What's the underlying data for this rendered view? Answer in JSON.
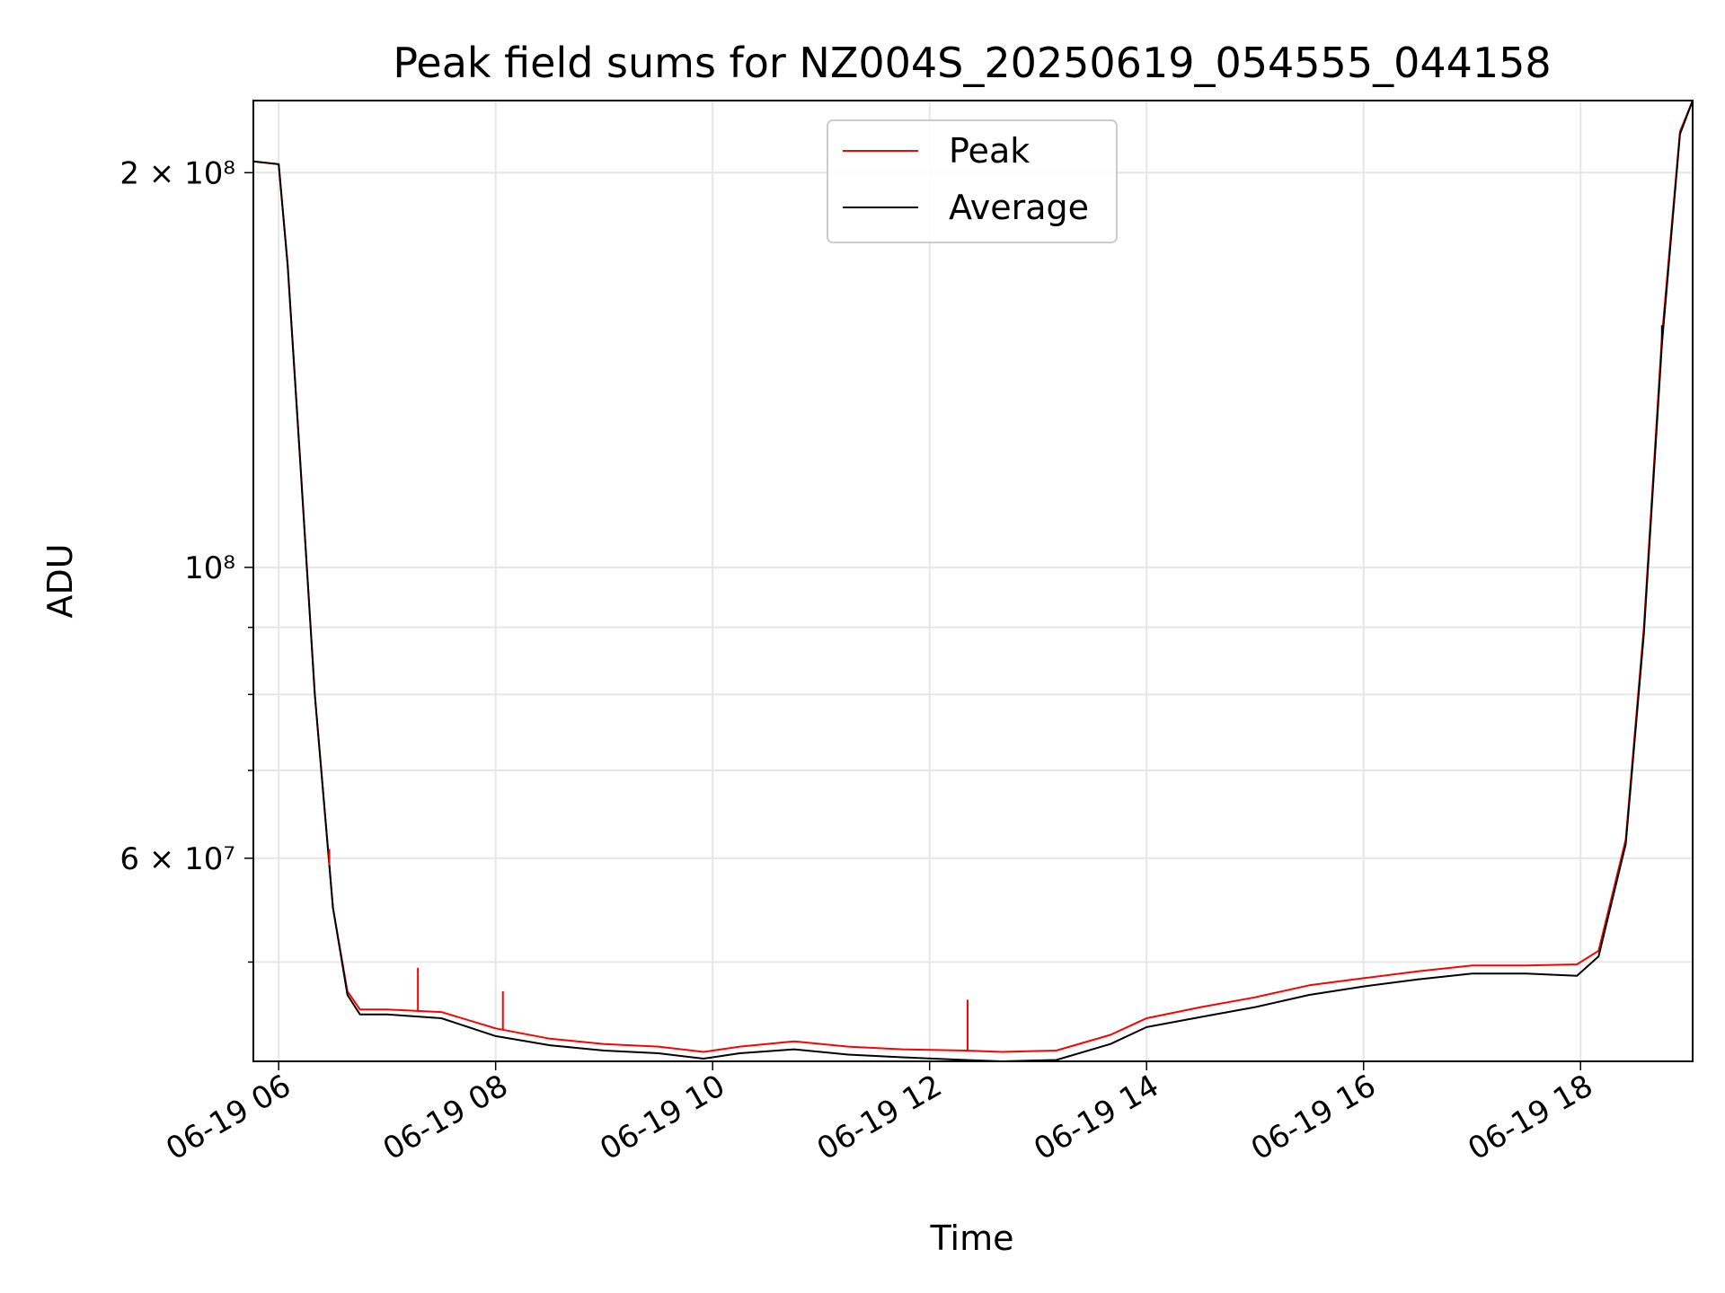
{
  "chart_data": {
    "type": "line",
    "title": "Peak field sums for NZ004S_20250619_054555_044158",
    "xlabel": "Time",
    "ylabel": "ADU",
    "yscale": "log",
    "ylim": [
      42000000,
      227000000
    ],
    "xlim": [
      "06-19 05:46",
      "06-19 19:02"
    ],
    "grid": true,
    "legend": "upper center",
    "x_ticks": [
      "06-19 06",
      "06-19 08",
      "06-19 10",
      "06-19 12",
      "06-19 14",
      "06-19 16",
      "06-19 18"
    ],
    "y_ticks": [
      {
        "value": 200000000,
        "label": "2 × 10⁸"
      },
      {
        "value": 100000000,
        "label": "10⁸"
      },
      {
        "value": 60000000,
        "label": "6 × 10⁷"
      }
    ],
    "x": [
      "06-19 05:46",
      "06-19 06:00",
      "06-19 06:05",
      "06-19 06:12",
      "06-19 06:20",
      "06-19 06:30",
      "06-19 06:38",
      "06-19 06:45",
      "06-19 07:00",
      "06-19 07:30",
      "06-19 08:00",
      "06-19 08:30",
      "06-19 09:00",
      "06-19 09:30",
      "06-19 09:55",
      "06-19 10:15",
      "06-19 10:45",
      "06-19 11:15",
      "06-19 11:45",
      "06-19 12:20",
      "06-19 12:40",
      "06-19 13:10",
      "06-19 13:40",
      "06-19 14:00",
      "06-19 14:30",
      "06-19 15:00",
      "06-19 15:30",
      "06-19 16:00",
      "06-19 16:30",
      "06-19 17:00",
      "06-19 17:30",
      "06-19 17:58",
      "06-19 18:10",
      "06-19 18:25",
      "06-19 18:35",
      "06-19 18:45",
      "06-19 18:55",
      "06-19 19:02"
    ],
    "series": [
      {
        "name": "Peak",
        "color": "#ff0000",
        "values": [
          204000000,
          203000000,
          170000000,
          120000000,
          80000000,
          55000000,
          47500000,
          46000000,
          46000000,
          45800000,
          44500000,
          43700000,
          43300000,
          43100000,
          42700000,
          43100000,
          43500000,
          43100000,
          42900000,
          42800000,
          42700000,
          42800000,
          44000000,
          45300000,
          46200000,
          47000000,
          48000000,
          48600000,
          49200000,
          49700000,
          49700000,
          49800000,
          51000000,
          62000000,
          90000000,
          150000000,
          215000000,
          227000000
        ]
      },
      {
        "name": "Average",
        "color": "#000000",
        "values": [
          204000000,
          203000000,
          170000000,
          120000000,
          80000000,
          55000000,
          47200000,
          45600000,
          45600000,
          45300000,
          43900000,
          43200000,
          42800000,
          42600000,
          42200000,
          42600000,
          42900000,
          42500000,
          42300000,
          42100000,
          42000000,
          42100000,
          43300000,
          44600000,
          45400000,
          46200000,
          47200000,
          47900000,
          48500000,
          49000000,
          49000000,
          48800000,
          50500000,
          61500000,
          89000000,
          148000000,
          214000000,
          227000000
        ]
      }
    ],
    "spikes": [
      {
        "series": "Peak",
        "x": "06-19 06:28",
        "value": 61000000
      },
      {
        "series": "Peak",
        "x": "06-19 07:17",
        "value": 49500000
      },
      {
        "series": "Peak",
        "x": "06-19 08:04",
        "value": 47500000
      },
      {
        "series": "Peak",
        "x": "06-19 12:21",
        "value": 46800000
      },
      {
        "series": "Average",
        "x": "06-19 18:45",
        "value": 153000000
      }
    ]
  }
}
